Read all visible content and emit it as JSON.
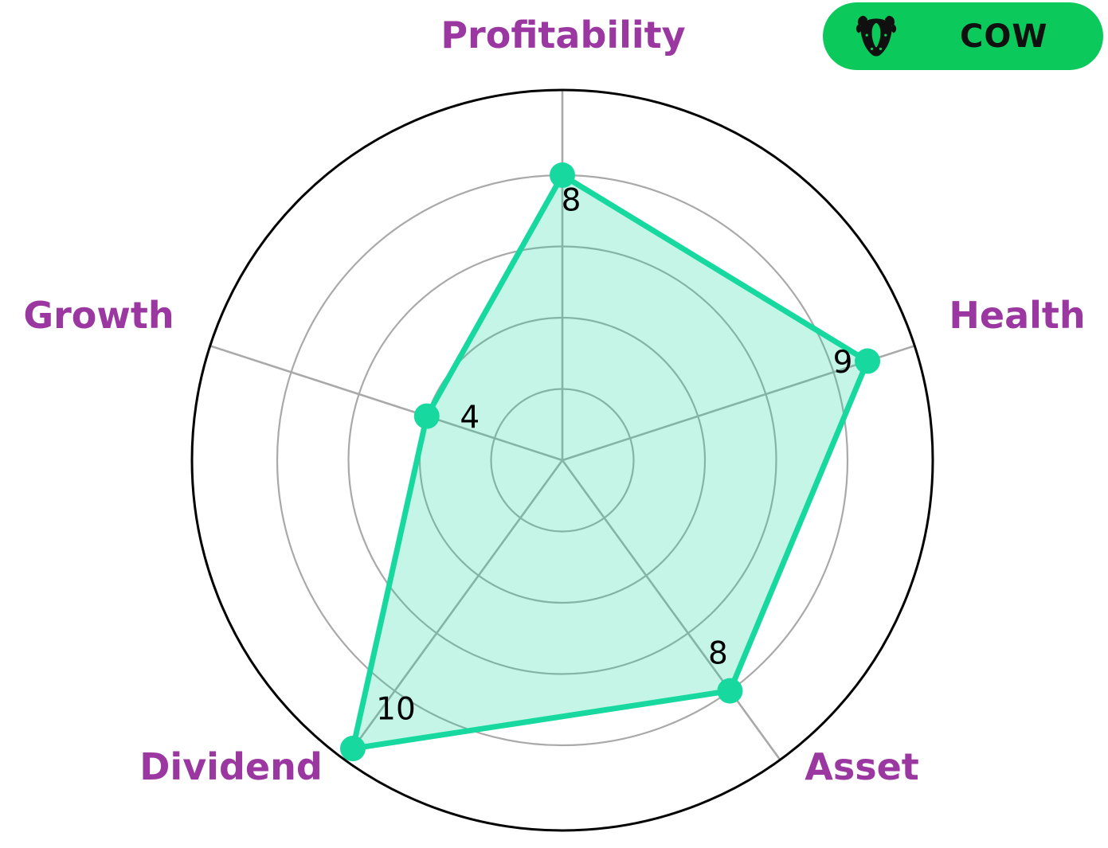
{
  "badge": {
    "label": "COW",
    "icon": "cow-icon",
    "bg_color": "#0CC95B",
    "text_color": "#101010",
    "icon_color": "#101010"
  },
  "chart_data": {
    "type": "radar",
    "categories": [
      "Profitability",
      "Health",
      "Asset",
      "Dividend",
      "Growth"
    ],
    "values": [
      8,
      9,
      8,
      10,
      4
    ],
    "value_labels": [
      "8",
      "9",
      "8",
      "10",
      "4"
    ],
    "rmax": 10,
    "grid_ticks": [
      2,
      4,
      6,
      8
    ],
    "grid": "on",
    "start_angle_deg": 90,
    "direction": "clockwise",
    "legend_position": "none",
    "colors": {
      "series_line": "#17D9A0",
      "series_fill_opacity": 0.25,
      "grid_line": "#A9A9A9",
      "outer_ring": "#000000",
      "value_label": "#000000",
      "category_label": "#9B37A0"
    }
  }
}
